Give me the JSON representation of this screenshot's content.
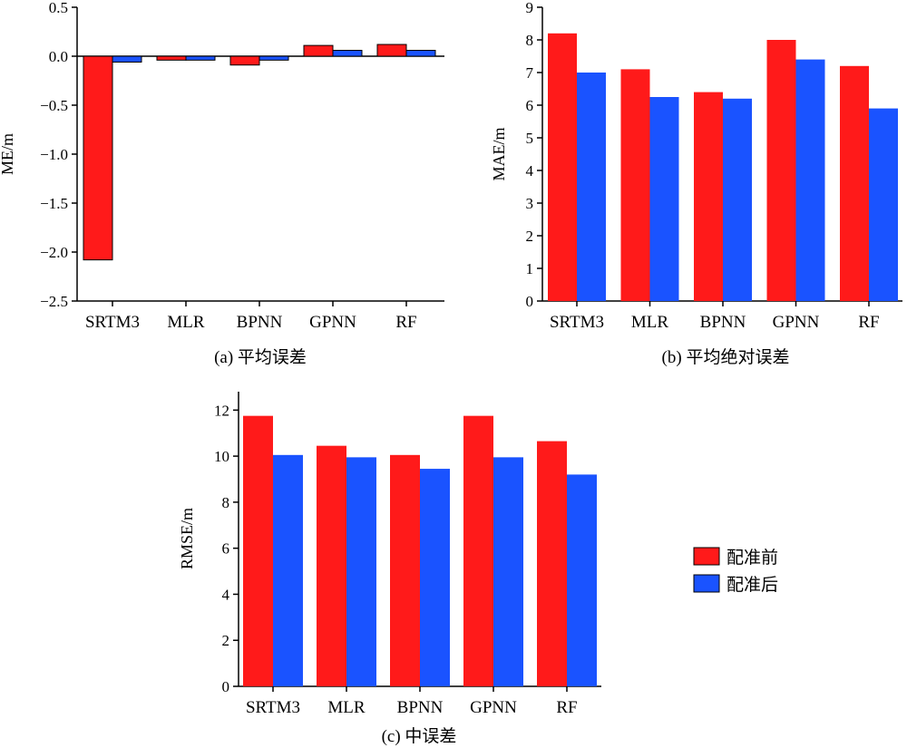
{
  "colors": {
    "before": "#ff1a1a",
    "after": "#1a53ff",
    "axis": "#000000"
  },
  "legend": {
    "items": [
      "配准前",
      "配准后"
    ]
  },
  "chart_data": [
    {
      "id": "a",
      "type": "bar",
      "caption": "(a) 平均误差",
      "ylabel": "ME/m",
      "ylim": [
        -2.5,
        0.5
      ],
      "yticks": [
        0.5,
        0.0,
        -0.5,
        -1.0,
        -1.5,
        -2.0,
        -2.5
      ],
      "ytick_labels": [
        "0.5",
        "0.0",
        "−0.5",
        "−1.0",
        "−1.5",
        "−2.0",
        "−2.5"
      ],
      "categories": [
        "SRTM3",
        "MLR",
        "BPNN",
        "GPNN",
        "RF"
      ],
      "series": [
        {
          "name": "配准前",
          "values": [
            -2.08,
            -0.04,
            -0.09,
            0.11,
            0.12
          ]
        },
        {
          "name": "配准后",
          "values": [
            -0.06,
            -0.04,
            -0.04,
            0.06,
            0.06
          ]
        }
      ],
      "bar_outline": true
    },
    {
      "id": "b",
      "type": "bar",
      "caption": "(b) 平均绝对误差",
      "ylabel": "MAE/m",
      "ylim": [
        0,
        9
      ],
      "yticks": [
        0,
        1,
        2,
        3,
        4,
        5,
        6,
        7,
        8,
        9
      ],
      "ytick_labels": [
        "0",
        "1",
        "2",
        "3",
        "4",
        "5",
        "6",
        "7",
        "8",
        "9"
      ],
      "categories": [
        "SRTM3",
        "MLR",
        "BPNN",
        "GPNN",
        "RF"
      ],
      "series": [
        {
          "name": "配准前",
          "values": [
            8.2,
            7.1,
            6.4,
            8.0,
            7.2
          ]
        },
        {
          "name": "配准后",
          "values": [
            7.0,
            6.25,
            6.2,
            7.4,
            5.9
          ]
        }
      ],
      "bar_outline": false
    },
    {
      "id": "c",
      "type": "bar",
      "caption": "(c) 中误差",
      "ylabel": "RMSE/m",
      "ylim": [
        0,
        12.8
      ],
      "yticks": [
        0,
        2,
        4,
        6,
        8,
        10,
        12
      ],
      "ytick_labels": [
        "0",
        "2",
        "4",
        "6",
        "8",
        "10",
        "12"
      ],
      "categories": [
        "SRTM3",
        "MLR",
        "BPNN",
        "GPNN",
        "RF"
      ],
      "series": [
        {
          "name": "配准前",
          "values": [
            11.75,
            10.45,
            10.05,
            11.75,
            10.65
          ]
        },
        {
          "name": "配准后",
          "values": [
            10.05,
            9.95,
            9.45,
            9.95,
            9.2
          ]
        }
      ],
      "bar_outline": false
    }
  ]
}
